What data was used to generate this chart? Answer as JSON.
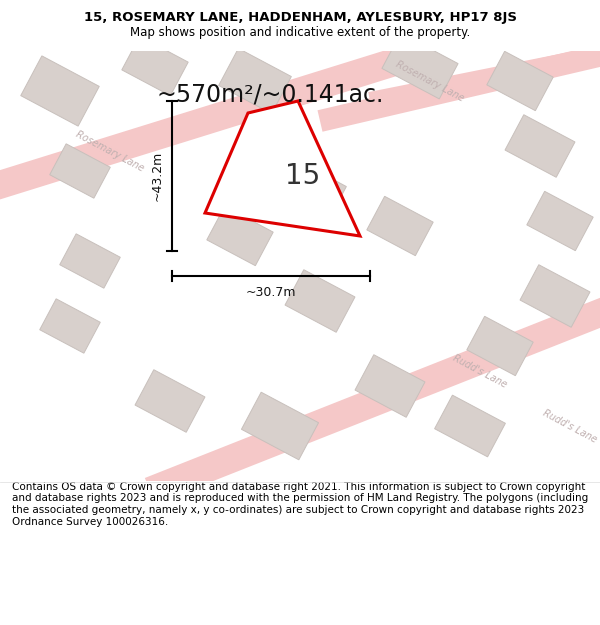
{
  "title_line1": "15, ROSEMARY LANE, HADDENHAM, AYLESBURY, HP17 8JS",
  "title_line2": "Map shows position and indicative extent of the property.",
  "area_text": "~570m²/~0.141ac.",
  "label_number": "15",
  "dim_width": "~30.7m",
  "dim_height": "~43.2m",
  "footer": "Contains OS data © Crown copyright and database right 2021. This information is subject to Crown copyright and database rights 2023 and is reproduced with the permission of HM Land Registry. The polygons (including the associated geometry, namely x, y co-ordinates) are subject to Crown copyright and database rights 2023 Ordnance Survey 100026316.",
  "bg_color": "#ffffff",
  "map_bg": "#ffffff",
  "road_color": "#f5c8c8",
  "building_color": "#d8d0cc",
  "building_edge": "#c8c0bc",
  "plot_color": "#ffffff",
  "plot_edge_color": "#dd0000",
  "road_label_color": "#c0b0b0",
  "title_fontsize": 9.5,
  "subtitle_fontsize": 8.5,
  "area_fontsize": 17,
  "number_fontsize": 20,
  "dim_fontsize": 9,
  "road_fontsize": 7,
  "footer_fontsize": 7.5
}
